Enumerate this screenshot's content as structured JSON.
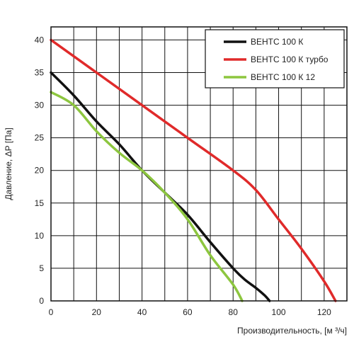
{
  "chart_data": {
    "type": "line",
    "xlabel": "Производительность, [м ³/ч]",
    "ylabel": "Давление, ΔP [Па]",
    "xlim": [
      0,
      130
    ],
    "ylim": [
      0,
      42
    ],
    "x_ticks": [
      0,
      20,
      40,
      60,
      80,
      100,
      120
    ],
    "y_ticks": [
      0,
      5,
      10,
      15,
      20,
      25,
      30,
      35,
      40
    ],
    "grid": true,
    "legend_position": "top-right",
    "series": [
      {
        "name": "ВЕНТС 100 К",
        "color": "#111111",
        "x": [
          0,
          10,
          20,
          30,
          40,
          50,
          60,
          70,
          80,
          85,
          90,
          94,
          96
        ],
        "y": [
          35,
          31.5,
          27.5,
          24,
          20,
          16.6,
          13.2,
          9,
          5,
          3.3,
          2,
          0.8,
          0
        ]
      },
      {
        "name": "ВЕНТС 100 К турбо",
        "color": "#e02a2a",
        "x": [
          0,
          20,
          40,
          60,
          80,
          90,
          100,
          110,
          120,
          125
        ],
        "y": [
          40,
          35,
          30,
          25,
          20,
          17,
          12.5,
          8,
          3,
          0
        ]
      },
      {
        "name": "ВЕНТС 100 К 12",
        "color": "#8dc63f",
        "x": [
          0,
          10,
          20,
          30,
          40,
          50,
          60,
          70,
          80,
          84
        ],
        "y": [
          32,
          30,
          26,
          22.7,
          20,
          16.6,
          12.5,
          7,
          2.5,
          0
        ]
      }
    ]
  }
}
